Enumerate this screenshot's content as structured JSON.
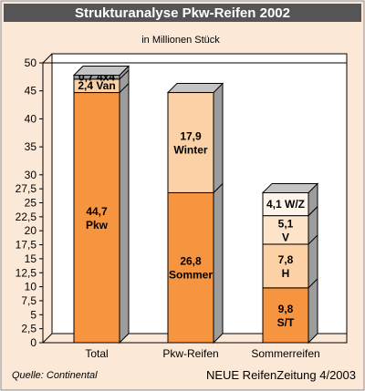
{
  "chart_data": {
    "type": "bar",
    "stacked": true,
    "title": "Strukturanalyse Pkw-Reifen 2002",
    "unit_label": "in Millionen Stück",
    "categories": [
      "Total",
      "Pkw-Reifen",
      "Sommerreifen"
    ],
    "ylim": [
      0,
      50
    ],
    "yticks": [
      "0",
      "2,5",
      "5",
      "7,5",
      "10",
      "12,5",
      "15",
      "17,5",
      "20",
      "22,5",
      "25",
      "27,5",
      "30",
      "35",
      "40",
      "45",
      "50"
    ],
    "ytick_values": [
      0,
      2.5,
      5,
      7.5,
      10,
      12.5,
      15,
      17.5,
      20,
      22.5,
      25,
      27.5,
      30,
      35,
      40,
      45,
      50
    ],
    "bars": [
      {
        "category": "Total",
        "segments": [
          {
            "value": 44.7,
            "value_label": "44,7",
            "name": "Pkw",
            "color": "#f7943f"
          },
          {
            "value": 2.4,
            "value_label": "2,4",
            "name": "Van",
            "color": "#fcd1a6"
          },
          {
            "value": 0.7,
            "value_label": "0,7",
            "name": "4x4",
            "color": "#9b9b9b"
          }
        ]
      },
      {
        "category": "Pkw-Reifen",
        "segments": [
          {
            "value": 26.8,
            "value_label": "26,8",
            "name": "Sommer",
            "color": "#f7943f"
          },
          {
            "value": 17.9,
            "value_label": "17,9",
            "name": "Winter",
            "color": "#fcd1a6"
          }
        ]
      },
      {
        "category": "Sommerreifen",
        "segments": [
          {
            "value": 9.8,
            "value_label": "9,8",
            "name": "S/T",
            "color": "#f7943f"
          },
          {
            "value": 7.8,
            "value_label": "7,8",
            "name": "H",
            "color": "#fcd1a6"
          },
          {
            "value": 5.1,
            "value_label": "5,1",
            "name": "V",
            "color": "#fde3c8"
          },
          {
            "value": 4.1,
            "value_label": "4,1",
            "name": "W/Z",
            "color": "#fff4ea"
          }
        ]
      }
    ],
    "grid": false
  },
  "source": "Quelle: Continental",
  "publication": "NEUE ReifenZeitung 4/2003",
  "colors": {
    "title_bar": "#555555",
    "panel_background": "#fce8d6",
    "plot_background": "#ffffff",
    "bar_side": "#9d9d9d",
    "bar_top": "#c4c4c4"
  }
}
